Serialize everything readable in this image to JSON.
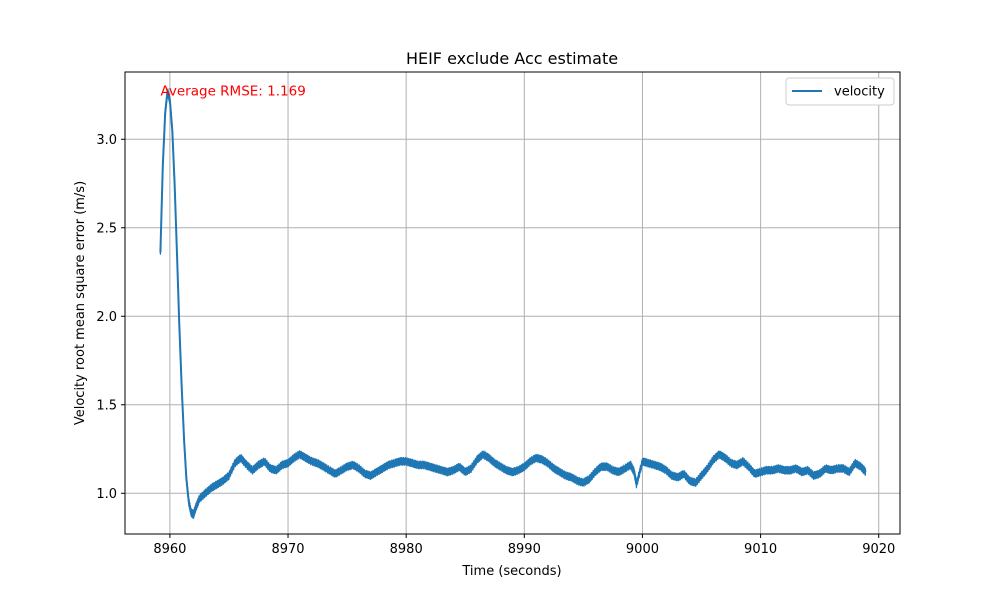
{
  "chart_data": {
    "type": "line",
    "title": "HEIF exclude Acc estimate",
    "xlabel": "Time (seconds)",
    "ylabel": "Velocity root mean square error (m/s)",
    "xlim": [
      8956.2,
      9021.8
    ],
    "ylim": [
      0.77,
      3.38
    ],
    "xticks": [
      8960,
      8970,
      8980,
      8990,
      9000,
      9010,
      9020
    ],
    "xtick_labels": [
      "8960",
      "8970",
      "8980",
      "8990",
      "9000",
      "9010",
      "9020"
    ],
    "yticks": [
      1.0,
      1.5,
      2.0,
      2.5,
      3.0
    ],
    "ytick_labels": [
      "1.0",
      "1.5",
      "2.0",
      "2.5",
      "3.0"
    ],
    "grid": true,
    "legend": {
      "position": "top-right",
      "entries": [
        "velocity"
      ]
    },
    "annotation": {
      "text": "Average RMSE: 1.169",
      "x": 8959.2,
      "y": 3.27,
      "color": "#ff0000"
    },
    "series": [
      {
        "name": "velocity",
        "color": "#1f77b4",
        "x": [
          8959.2,
          8959.4,
          8959.6,
          8959.8,
          8960.0,
          8960.2,
          8960.4,
          8960.6,
          8960.8,
          8961.0,
          8961.2,
          8961.4,
          8961.6,
          8961.8,
          8962.0,
          8962.2,
          8962.5,
          8963.0,
          8963.5,
          8964.0,
          8964.5,
          8965.0,
          8965.5,
          8966.0,
          8966.5,
          8967.0,
          8967.5,
          8968.0,
          8968.5,
          8969.0,
          8969.5,
          8970.0,
          8970.5,
          8971.0,
          8971.5,
          8972.0,
          8972.5,
          8973.0,
          8973.5,
          8974.0,
          8974.5,
          8975.0,
          8975.5,
          8976.0,
          8976.5,
          8977.0,
          8977.5,
          8978.0,
          8978.5,
          8979.0,
          8979.5,
          8980.0,
          8980.5,
          8981.0,
          8981.5,
          8982.0,
          8982.5,
          8983.0,
          8983.5,
          8984.0,
          8984.5,
          8985.0,
          8985.5,
          8986.0,
          8986.5,
          8987.0,
          8987.5,
          8988.0,
          8988.5,
          8989.0,
          8989.5,
          8990.0,
          8990.5,
          8991.0,
          8991.5,
          8992.0,
          8992.5,
          8993.0,
          8993.5,
          8994.0,
          8994.5,
          8995.0,
          8995.5,
          8996.0,
          8996.5,
          8997.0,
          8997.5,
          8998.0,
          8998.5,
          8999.0,
          8999.3,
          8999.5,
          9000.0,
          9000.5,
          9001.0,
          9001.5,
          9002.0,
          9002.5,
          9003.0,
          9003.5,
          9004.0,
          9004.5,
          9005.0,
          9005.5,
          9006.0,
          9006.5,
          9007.0,
          9007.5,
          9008.0,
          9008.5,
          9009.0,
          9009.5,
          9010.0,
          9010.5,
          9011.0,
          9011.5,
          9012.0,
          9012.5,
          9013.0,
          9013.5,
          9014.0,
          9014.5,
          9015.0,
          9015.5,
          9016.0,
          9016.5,
          9017.0,
          9017.5,
          9018.0,
          9018.5,
          9018.9
        ],
        "y": [
          2.36,
          2.85,
          3.15,
          3.27,
          3.22,
          3.05,
          2.75,
          2.35,
          1.95,
          1.6,
          1.3,
          1.08,
          0.95,
          0.89,
          0.88,
          0.92,
          0.97,
          1.0,
          1.03,
          1.05,
          1.07,
          1.1,
          1.17,
          1.2,
          1.16,
          1.13,
          1.16,
          1.18,
          1.14,
          1.13,
          1.16,
          1.17,
          1.2,
          1.22,
          1.2,
          1.18,
          1.17,
          1.15,
          1.13,
          1.11,
          1.13,
          1.15,
          1.16,
          1.14,
          1.11,
          1.1,
          1.12,
          1.14,
          1.16,
          1.17,
          1.18,
          1.18,
          1.17,
          1.16,
          1.16,
          1.15,
          1.14,
          1.13,
          1.12,
          1.13,
          1.15,
          1.12,
          1.14,
          1.19,
          1.22,
          1.2,
          1.17,
          1.15,
          1.13,
          1.12,
          1.13,
          1.15,
          1.18,
          1.2,
          1.19,
          1.17,
          1.14,
          1.12,
          1.1,
          1.09,
          1.07,
          1.06,
          1.08,
          1.12,
          1.15,
          1.15,
          1.13,
          1.12,
          1.14,
          1.16,
          1.12,
          1.05,
          1.18,
          1.17,
          1.16,
          1.15,
          1.13,
          1.1,
          1.09,
          1.11,
          1.07,
          1.06,
          1.1,
          1.14,
          1.19,
          1.22,
          1.2,
          1.17,
          1.16,
          1.18,
          1.15,
          1.11,
          1.12,
          1.13,
          1.13,
          1.14,
          1.13,
          1.13,
          1.14,
          1.12,
          1.13,
          1.1,
          1.11,
          1.14,
          1.13,
          1.14,
          1.14,
          1.12,
          1.17,
          1.15,
          1.12
        ]
      }
    ]
  }
}
